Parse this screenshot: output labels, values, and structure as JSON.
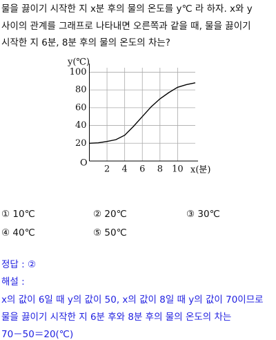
{
  "question": {
    "lines": [
      "물을 끓이기 시작한 지 x분 후의 물의 온도를 y℃ 라 하자. x와 y",
      "사이의 관계를 그래프로 나타내면 오른쪽과 같을 때, 물을 끓이기",
      "시작한 지 6분, 8분 후의 물의 온도의 차는?"
    ]
  },
  "graph": {
    "type": "line",
    "y_label": "y(℃)",
    "x_label": "x(분)",
    "origin_label": "O",
    "x": [
      0,
      1,
      2,
      3,
      4,
      5,
      6,
      7,
      8,
      9,
      10,
      11,
      12
    ],
    "values": [
      20,
      20.5,
      22,
      24,
      29,
      39,
      50,
      61,
      70,
      77,
      83,
      86,
      88
    ],
    "xlim": [
      0,
      12
    ],
    "ylim": [
      0,
      105
    ],
    "xticks": [
      2,
      4,
      6,
      8,
      10
    ],
    "yticks": [
      20,
      40,
      60,
      80,
      100
    ],
    "grid": true,
    "color": "#000000"
  },
  "options": [
    "① 10℃",
    "② 20℃",
    "③ 30℃",
    "④ 40℃",
    "⑤ 50℃"
  ],
  "answer": "정답 : ②",
  "solution": {
    "heading": "해설 :",
    "lines": [
      "x의 값이 6일 때 y의 값이 50, x의 값이 8일 때 y의 값이 70이므로",
      "물을 끓이기 시작한 지 6분 후와 8분 후의 물의 온도의 차는",
      "70－50＝20(℃)"
    ]
  }
}
